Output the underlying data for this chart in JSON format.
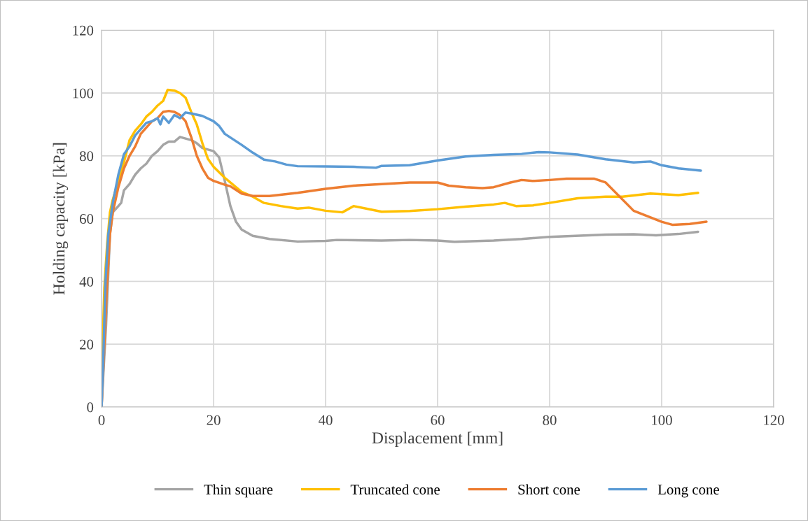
{
  "chart_data": {
    "type": "line",
    "xlabel": "Displacement [mm]",
    "ylabel": "Holding capacity [kPa]",
    "xlim": [
      0,
      120
    ],
    "ylim": [
      0,
      120
    ],
    "xticks": [
      0,
      20,
      40,
      60,
      80,
      100,
      120
    ],
    "yticks": [
      0,
      20,
      40,
      60,
      80,
      100,
      120
    ],
    "grid": true,
    "legend": "bottom",
    "marker": "none",
    "line_style": "solid",
    "series": [
      {
        "name": "Thin square",
        "color": "#a5a5a5",
        "x": [
          0,
          0.3,
          0.8,
          1.5,
          2,
          3.5,
          4,
          5,
          6,
          7,
          8,
          9,
          10,
          11,
          12,
          13,
          14,
          15,
          16,
          17,
          18,
          19,
          20,
          21,
          22,
          23,
          24,
          25,
          27,
          30,
          35,
          40,
          42,
          50,
          55,
          60,
          63,
          70,
          75,
          80,
          90,
          95,
          99,
          103,
          106.5
        ],
        "values": [
          0,
          10,
          26,
          55,
          62,
          65,
          69,
          71,
          74,
          76,
          77.5,
          80,
          81.5,
          83.5,
          84.5,
          84.5,
          86,
          85.5,
          85,
          84,
          82.5,
          82,
          81.5,
          79.5,
          72,
          64,
          59,
          56.5,
          54.5,
          53.5,
          52.7,
          52.9,
          53.2,
          53,
          53.2,
          53,
          52.6,
          53,
          53.5,
          54.2,
          54.9,
          55,
          54.7,
          55.1,
          55.8
        ]
      },
      {
        "name": "Truncated cone",
        "color": "#ffc000",
        "x": [
          0,
          0.2,
          0.5,
          1,
          1.5,
          2,
          3,
          4,
          5,
          6,
          7,
          8,
          9,
          10,
          11,
          11.8,
          13,
          14,
          15,
          16,
          17,
          18,
          19,
          20,
          22,
          25,
          27,
          29,
          32,
          35,
          37,
          40,
          43,
          45,
          50,
          55,
          60,
          65,
          70,
          72,
          74,
          77,
          80,
          85,
          90,
          93,
          98,
          103,
          106.5
        ],
        "values": [
          0,
          20,
          38,
          52,
          62,
          66,
          72,
          78,
          85,
          88,
          90,
          92.5,
          94,
          96,
          97.5,
          101,
          100.8,
          100,
          98.5,
          94,
          90,
          84,
          79,
          76.5,
          73,
          68.5,
          67,
          65,
          64,
          63.2,
          63.5,
          62.5,
          62,
          64,
          62.2,
          62.4,
          63,
          63.8,
          64.5,
          65,
          64,
          64.2,
          65,
          66.5,
          67,
          67,
          68,
          67.5,
          68.2
        ]
      },
      {
        "name": "Short cone",
        "color": "#ed7d31",
        "x": [
          0,
          0.5,
          1,
          1.5,
          2,
          3,
          4,
          5,
          6,
          7,
          8,
          9,
          10,
          11,
          12,
          13,
          14,
          15,
          16,
          17,
          18,
          19,
          20,
          22,
          23,
          25,
          27,
          30,
          35,
          40,
          45,
          50,
          55,
          60,
          62,
          65,
          68,
          70,
          73,
          75,
          77,
          80,
          83,
          88,
          90,
          95,
          100,
          102,
          105,
          108
        ],
        "values": [
          0,
          20,
          40,
          55,
          62,
          70,
          76,
          80,
          83,
          87,
          89,
          91,
          92,
          94,
          94.3,
          94,
          93,
          91,
          86,
          80,
          76,
          73,
          72,
          70.8,
          70.3,
          68,
          67.2,
          67.2,
          68.2,
          69.5,
          70.5,
          71,
          71.5,
          71.5,
          70.5,
          70,
          69.7,
          70,
          71.5,
          72.3,
          72,
          72.3,
          72.7,
          72.7,
          71.5,
          62.5,
          59,
          58,
          58.3,
          59
        ]
      },
      {
        "name": "Long cone",
        "color": "#5b9bd5",
        "x": [
          0,
          0.3,
          0.7,
          1.2,
          2,
          3,
          4,
          5,
          6,
          7,
          8,
          9,
          10,
          10.5,
          11,
          12,
          13,
          14,
          15,
          16,
          18,
          20,
          21,
          22,
          25,
          27,
          29,
          31,
          33,
          35,
          40,
          45,
          49,
          50,
          55,
          60,
          65,
          70,
          75,
          78,
          80,
          85,
          90,
          95,
          98,
          100,
          103,
          107
        ],
        "values": [
          0,
          15,
          40,
          55,
          65,
          74,
          80.5,
          83,
          86.5,
          88.5,
          90.5,
          91,
          92,
          90,
          92.5,
          90.5,
          93,
          92,
          93.8,
          93.5,
          92.7,
          91,
          89.5,
          87,
          83.5,
          81,
          78.8,
          78.2,
          77.2,
          76.7,
          76.6,
          76.5,
          76.2,
          76.8,
          77,
          78.5,
          79.8,
          80.3,
          80.6,
          81.2,
          81.1,
          80.4,
          78.9,
          77.9,
          78.2,
          77,
          76,
          75.3
        ]
      }
    ]
  }
}
